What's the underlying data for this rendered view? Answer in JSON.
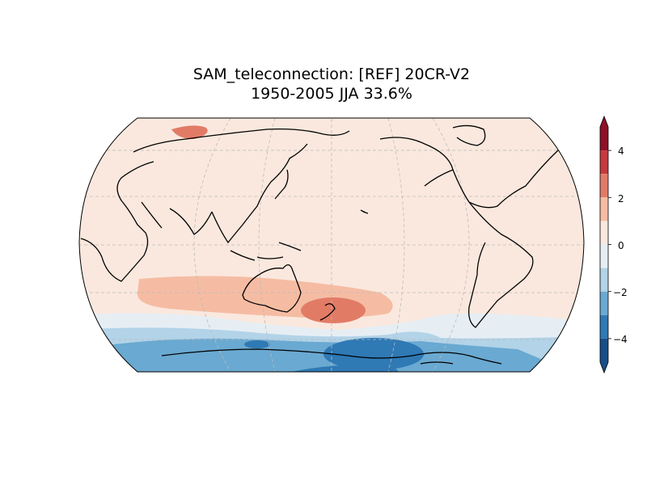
{
  "title": {
    "line1": "SAM_teleconnection: [REF] 20CR-V2",
    "line2": "1950-2005 JJA 33.6%"
  },
  "map": {
    "projection": "robinson",
    "central_longitude": 180,
    "gridlines": true,
    "coastlines": true
  },
  "colorbar": {
    "ticks": [
      "4",
      "2",
      "0",
      "−2",
      "−4"
    ],
    "levels": [
      {
        "range": [
          4,
          5
        ],
        "color": "#8e1027"
      },
      {
        "range": [
          3,
          4
        ],
        "color": "#c53a3e"
      },
      {
        "range": [
          2,
          3
        ],
        "color": "#e27b66"
      },
      {
        "range": [
          1,
          2
        ],
        "color": "#f5bca3"
      },
      {
        "range": [
          0,
          1
        ],
        "color": "#fae8de"
      },
      {
        "range": [
          -1,
          0
        ],
        "color": "#e6eef4"
      },
      {
        "range": [
          -2,
          -1
        ],
        "color": "#b2d3e8"
      },
      {
        "range": [
          -3,
          -2
        ],
        "color": "#6aa9d1"
      },
      {
        "range": [
          -4,
          -3
        ],
        "color": "#2f79b5"
      },
      {
        "range": [
          -5,
          -4
        ],
        "color": "#184f89"
      }
    ],
    "extend": "both"
  }
}
